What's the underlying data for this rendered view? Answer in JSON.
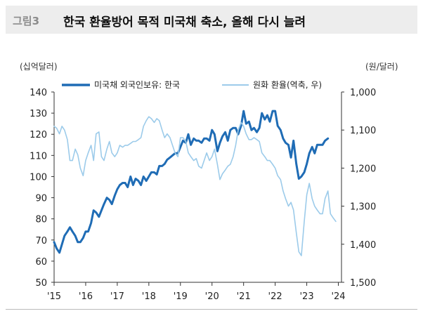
{
  "header": {
    "label": "그림3",
    "title": "한국 환율방어 목적 미국채 축소, 올해 다시 늘려"
  },
  "chart_data": {
    "type": "line",
    "title": "한국 환율방어 목적 미국채 축소, 올해 다시 늘려",
    "left_unit": "(십억달러)",
    "right_unit": "(원/달러)",
    "x_ticks": [
      "'15",
      "'16",
      "'17",
      "'18",
      "'19",
      "'20",
      "'21",
      "'22",
      "'23",
      "'24"
    ],
    "ylim": [
      50,
      140
    ],
    "y_ticks": [
      "140",
      "130",
      "120",
      "110",
      "100",
      "90",
      "80",
      "70",
      "60",
      "50"
    ],
    "y2lim": [
      1000,
      1500
    ],
    "y2_inverted": true,
    "y2_ticks": [
      "1,000",
      "1,100",
      "1,200",
      "1,300",
      "1,400",
      "1,500"
    ],
    "legend_position": "top",
    "grid": false,
    "series": [
      {
        "name": "미국채 외국인보유: 한국",
        "axis": "left",
        "color": "#1f6cb5",
        "x": [
          2015.0,
          2015.08,
          2015.17,
          2015.25,
          2015.33,
          2015.42,
          2015.5,
          2015.58,
          2015.67,
          2015.75,
          2015.83,
          2015.92,
          2016.0,
          2016.08,
          2016.17,
          2016.25,
          2016.33,
          2016.42,
          2016.5,
          2016.58,
          2016.67,
          2016.75,
          2016.83,
          2016.92,
          2017.0,
          2017.08,
          2017.17,
          2017.25,
          2017.33,
          2017.42,
          2017.5,
          2017.58,
          2017.67,
          2017.75,
          2017.83,
          2017.92,
          2018.0,
          2018.08,
          2018.17,
          2018.25,
          2018.33,
          2018.42,
          2018.5,
          2018.58,
          2018.67,
          2018.75,
          2018.83,
          2018.92,
          2019.0,
          2019.08,
          2019.17,
          2019.25,
          2019.33,
          2019.42,
          2019.5,
          2019.58,
          2019.67,
          2019.75,
          2019.83,
          2019.92,
          2020.0,
          2020.08,
          2020.17,
          2020.25,
          2020.33,
          2020.42,
          2020.5,
          2020.58,
          2020.67,
          2020.75,
          2020.83,
          2020.92,
          2021.0,
          2021.08,
          2021.17,
          2021.25,
          2021.33,
          2021.42,
          2021.5,
          2021.58,
          2021.67,
          2021.75,
          2021.83,
          2021.92,
          2022.0,
          2022.08,
          2022.17,
          2022.25,
          2022.33,
          2022.42,
          2022.5,
          2022.58,
          2022.67,
          2022.75,
          2022.83,
          2022.92,
          2023.0,
          2023.08,
          2023.17,
          2023.25,
          2023.33,
          2023.42,
          2023.5,
          2023.58,
          2023.67
        ],
        "y": [
          69,
          66,
          64,
          68,
          72,
          74,
          76,
          74,
          72,
          69,
          69,
          71,
          74,
          74,
          78,
          84,
          83,
          81,
          84,
          87,
          90,
          89,
          87,
          91,
          94,
          96,
          97,
          97,
          95,
          100,
          96,
          99,
          98,
          96,
          100,
          98,
          100,
          102,
          102,
          101,
          105,
          105,
          106,
          108,
          109,
          110,
          111,
          111,
          114,
          117,
          116,
          120,
          115,
          118,
          117,
          117,
          116,
          118,
          118,
          117,
          122,
          120,
          112,
          116,
          119,
          121,
          117,
          122,
          123,
          123,
          120,
          124,
          131,
          125,
          126,
          122,
          123,
          121,
          123,
          130,
          127,
          129,
          126,
          131,
          131,
          124,
          122,
          118,
          116,
          115,
          109,
          117,
          106,
          99,
          100,
          102,
          106,
          111,
          114,
          111,
          115,
          115,
          115,
          117,
          118
        ]
      },
      {
        "name": "원화 환율(역축, 우)",
        "axis": "right",
        "color": "#9ccbea",
        "x": [
          2015.0,
          2015.08,
          2015.17,
          2015.25,
          2015.33,
          2015.42,
          2015.5,
          2015.58,
          2015.67,
          2015.75,
          2015.83,
          2015.92,
          2016.0,
          2016.08,
          2016.17,
          2016.25,
          2016.33,
          2016.42,
          2016.5,
          2016.58,
          2016.67,
          2016.75,
          2016.83,
          2016.92,
          2017.0,
          2017.08,
          2017.17,
          2017.25,
          2017.33,
          2017.42,
          2017.5,
          2017.58,
          2017.67,
          2017.75,
          2017.83,
          2017.92,
          2018.0,
          2018.08,
          2018.17,
          2018.25,
          2018.33,
          2018.42,
          2018.5,
          2018.58,
          2018.67,
          2018.75,
          2018.83,
          2018.92,
          2019.0,
          2019.08,
          2019.17,
          2019.25,
          2019.33,
          2019.42,
          2019.5,
          2019.58,
          2019.67,
          2019.75,
          2019.83,
          2019.92,
          2020.0,
          2020.08,
          2020.17,
          2020.25,
          2020.33,
          2020.42,
          2020.5,
          2020.58,
          2020.67,
          2020.75,
          2020.83,
          2020.92,
          2021.0,
          2021.08,
          2021.17,
          2021.25,
          2021.33,
          2021.42,
          2021.5,
          2021.58,
          2021.67,
          2021.75,
          2021.83,
          2021.92,
          2022.0,
          2022.08,
          2022.17,
          2022.25,
          2022.33,
          2022.42,
          2022.5,
          2022.58,
          2022.67,
          2022.75,
          2022.83,
          2022.92,
          2023.0,
          2023.08,
          2023.17,
          2023.25,
          2023.33,
          2023.42,
          2023.5,
          2023.58,
          2023.67,
          2023.75,
          2023.83,
          2023.92
        ],
        "y": [
          1090,
          1095,
          1110,
          1090,
          1100,
          1125,
          1180,
          1180,
          1150,
          1165,
          1200,
          1220,
          1180,
          1160,
          1140,
          1180,
          1110,
          1105,
          1170,
          1180,
          1150,
          1130,
          1160,
          1170,
          1160,
          1140,
          1145,
          1140,
          1140,
          1135,
          1130,
          1130,
          1125,
          1120,
          1090,
          1075,
          1065,
          1070,
          1080,
          1070,
          1075,
          1100,
          1120,
          1110,
          1120,
          1140,
          1160,
          1170,
          1120,
          1120,
          1130,
          1160,
          1170,
          1180,
          1175,
          1195,
          1200,
          1180,
          1160,
          1180,
          1170,
          1150,
          1190,
          1230,
          1215,
          1205,
          1195,
          1190,
          1170,
          1140,
          1100,
          1080,
          1090,
          1110,
          1125,
          1125,
          1120,
          1125,
          1130,
          1160,
          1170,
          1180,
          1180,
          1190,
          1200,
          1220,
          1230,
          1260,
          1280,
          1300,
          1290,
          1310,
          1370,
          1420,
          1430,
          1340,
          1270,
          1240,
          1280,
          1300,
          1310,
          1320,
          1320,
          1280,
          1260,
          1320,
          1330,
          1340
        ]
      }
    ]
  }
}
